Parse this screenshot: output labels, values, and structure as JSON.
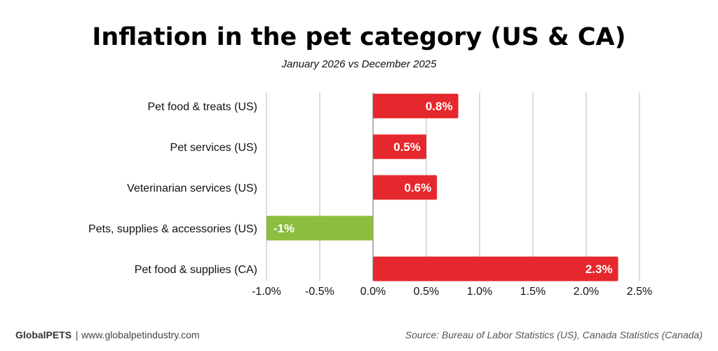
{
  "chart_data": {
    "type": "bar",
    "orientation": "horizontal",
    "title": "Inflation in the pet category (US & CA)",
    "subtitle": "January 2026 vs December 2025",
    "categories": [
      "Pet food & treats (US)",
      "Pet services (US)",
      "Veterinarian services (US)",
      "Pets, supplies & accessories (US)",
      "Pet food & supplies (CA)"
    ],
    "values": [
      0.8,
      0.5,
      0.6,
      -1.0,
      2.3
    ],
    "data_labels": [
      "0.8%",
      "0.5%",
      "0.6%",
      "-1%",
      "2.3%"
    ],
    "xlim": [
      -1.0,
      2.5
    ],
    "xticks": [
      -1.0,
      -0.5,
      0.0,
      0.5,
      1.0,
      1.5,
      2.0,
      2.5
    ],
    "xtick_labels": [
      "-1.0%",
      "-0.5%",
      "0.0%",
      "0.5%",
      "1.0%",
      "1.5%",
      "2.0%",
      "2.5%"
    ],
    "xlabel": "",
    "ylabel": "",
    "grid": true,
    "colors": {
      "positive": "#e5282d",
      "negative": "#8bbd3f",
      "grid": "#c8c8c8"
    }
  },
  "footer": {
    "brand": "GlobalPETS",
    "separator": " | ",
    "website": "www.globalpetindustry.com",
    "source": "Source: Bureau of Labor Statistics (US), Canada Statistics (Canada)"
  }
}
